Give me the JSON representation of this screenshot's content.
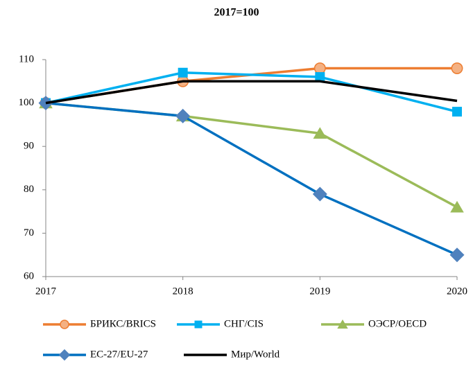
{
  "chart_data": {
    "type": "line",
    "title": "2017=100",
    "categories": [
      "2017",
      "2018",
      "2019",
      "2020"
    ],
    "series": [
      {
        "name": "БРИКС/BRICS",
        "color": "#ed7d31",
        "marker": "circle",
        "values": [
          100,
          105,
          108,
          108
        ]
      },
      {
        "name": "СНГ/CIS",
        "color": "#00b0f0",
        "marker": "square",
        "values": [
          100,
          107,
          106,
          98
        ]
      },
      {
        "name": "ОЭСР/OECD",
        "color": "#9bbb59",
        "marker": "triangle",
        "values": [
          100,
          97,
          93,
          76
        ]
      },
      {
        "name": "ЕС-27/EU-27",
        "color": "#0070c0",
        "marker": "diamond",
        "marker_color": "#4f81bd",
        "values": [
          100,
          97,
          79,
          65
        ]
      },
      {
        "name": "Мир/World",
        "color": "#000000",
        "values": [
          100,
          105,
          105,
          100.5
        ]
      }
    ],
    "ylim": [
      60,
      110
    ],
    "yticks": [
      60,
      70,
      80,
      90,
      100,
      110
    ],
    "grid": false,
    "legend": "bottom"
  }
}
